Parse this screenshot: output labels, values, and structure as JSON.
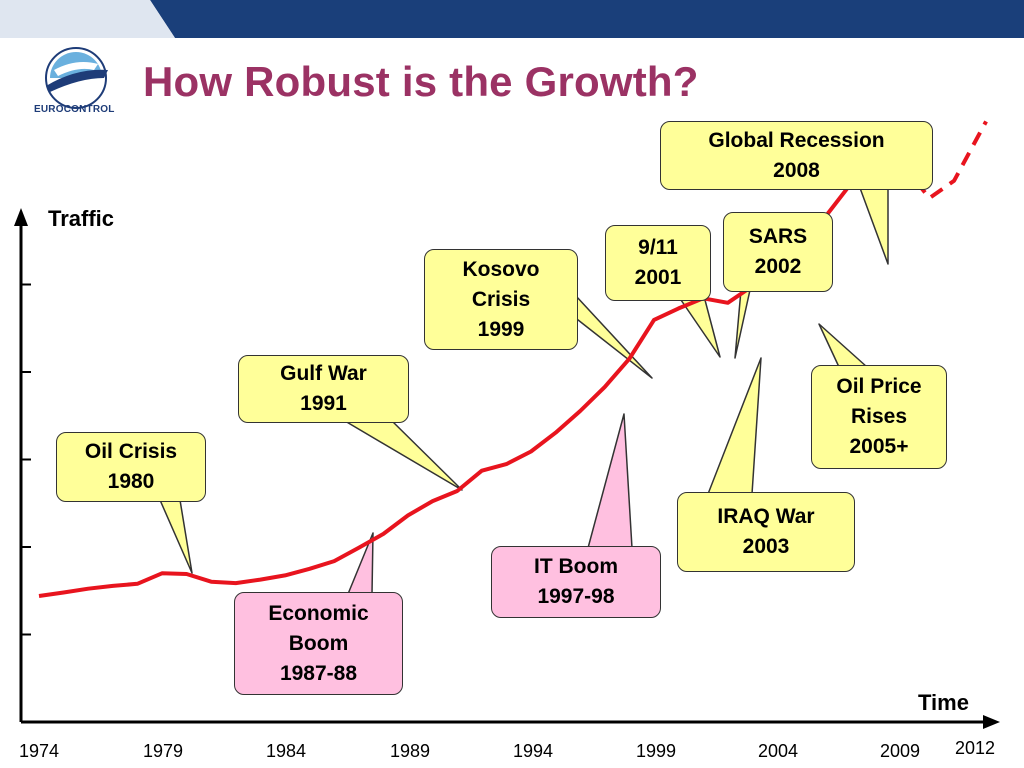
{
  "slide": {
    "title": "How Robust is the Growth?",
    "logo_text": "EUROCONTROL"
  },
  "colors": {
    "title": "#9b3264",
    "line": "#e8141e",
    "callout_yellow": "#ffff99",
    "callout_pink": "#ffc0e0",
    "header_band": "#1a3f7a"
  },
  "chart_data": {
    "type": "line",
    "title": "",
    "xlabel": "Time",
    "ylabel": "Traffic",
    "x_ticks": [
      "1974",
      "1979",
      "1984",
      "1989",
      "1994",
      "1999",
      "2004",
      "2009",
      "2012"
    ],
    "xlim": [
      1974,
      2012.5
    ],
    "y_tick_count": 5,
    "series": [
      {
        "style": "solid",
        "x": [
          1974,
          1975,
          1976,
          1977,
          1978,
          1979,
          1980,
          1981,
          1982,
          1983,
          1984,
          1985,
          1986,
          1987,
          1988,
          1989,
          1990,
          1991,
          1992,
          1993,
          1994,
          1995,
          1996,
          1997,
          1998,
          1999,
          2000,
          2001,
          2002,
          2003,
          2004,
          2005,
          2006,
          2007,
          2008,
          2008.7
        ],
        "y": [
          1.15,
          1.25,
          1.36,
          1.44,
          1.5,
          1.8,
          1.78,
          1.56,
          1.52,
          1.62,
          1.74,
          1.93,
          2.15,
          2.53,
          2.93,
          3.46,
          3.87,
          4.16,
          4.74,
          4.93,
          5.29,
          5.83,
          6.45,
          7.14,
          7.95,
          9.06,
          9.39,
          9.68,
          9.55,
          10.03,
          10.7,
          11.29,
          12.05,
          12.96,
          13.42,
          14.15
        ]
      },
      {
        "style": "dashed",
        "x": [
          2008.7,
          2009.4,
          2010.2,
          2011.2,
          2012.5
        ],
        "y": [
          14.15,
          13.25,
          12.55,
          13.05,
          14.75
        ]
      }
    ]
  },
  "callouts": [
    {
      "id": "oil-crisis",
      "lines": [
        "Oil Crisis",
        "1980"
      ],
      "color": "yellow"
    },
    {
      "id": "economic-boom",
      "lines": [
        "Economic",
        "Boom",
        "1987-88"
      ],
      "color": "pink"
    },
    {
      "id": "gulf-war",
      "lines": [
        "Gulf War",
        "1991"
      ],
      "color": "yellow"
    },
    {
      "id": "it-boom",
      "lines": [
        "IT Boom",
        "1997-98"
      ],
      "color": "pink"
    },
    {
      "id": "kosovo",
      "lines": [
        "Kosovo",
        "Crisis",
        "1999"
      ],
      "color": "yellow"
    },
    {
      "id": "nine-eleven",
      "lines": [
        "9/11",
        "2001"
      ],
      "color": "yellow"
    },
    {
      "id": "sars",
      "lines": [
        "SARS",
        "2002"
      ],
      "color": "yellow"
    },
    {
      "id": "iraq-war",
      "lines": [
        "IRAQ War",
        "2003"
      ],
      "color": "yellow"
    },
    {
      "id": "oil-price",
      "lines": [
        "Oil Price",
        "Rises",
        "2005+"
      ],
      "color": "yellow"
    },
    {
      "id": "global-recession",
      "lines": [
        "Global Recession",
        "2008"
      ],
      "color": "yellow"
    }
  ]
}
